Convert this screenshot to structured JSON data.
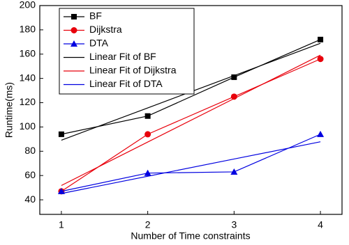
{
  "chart_data": {
    "type": "line",
    "x_label": "Number of Time constraints",
    "y_label": "Runtime(ms)",
    "x": [
      1,
      2,
      3,
      4
    ],
    "series": [
      {
        "name": "BF",
        "color": "#000000",
        "marker": "square",
        "values": [
          94,
          109,
          141,
          172
        ]
      },
      {
        "name": "Dijkstra",
        "color": "#e8000b",
        "marker": "circle",
        "values": [
          47,
          94,
          125,
          156
        ]
      },
      {
        "name": "DTA",
        "color": "#0000e0",
        "marker": "triangle",
        "values": [
          47,
          62,
          63,
          94
        ]
      },
      {
        "name": "Linear Fit of BF",
        "color": "#000000",
        "marker": "none",
        "values": [
          89.1,
          115.7,
          142.3,
          168.9
        ]
      },
      {
        "name": "Linear Fit of Dijkstra",
        "color": "#e8000b",
        "marker": "none",
        "values": [
          51.8,
          87.6,
          123.4,
          159.2
        ]
      },
      {
        "name": "Linear Fit of DTA",
        "color": "#0000e0",
        "marker": "none",
        "values": [
          45.2,
          59.4,
          73.6,
          87.8
        ]
      }
    ],
    "xlim": [
      0.75,
      4.25
    ],
    "xticks": [
      1,
      2,
      3,
      4
    ],
    "ylim": [
      28,
      200
    ],
    "yticks": [
      40,
      60,
      80,
      100,
      120,
      140,
      160,
      180,
      200
    ],
    "legend": "top-left"
  }
}
